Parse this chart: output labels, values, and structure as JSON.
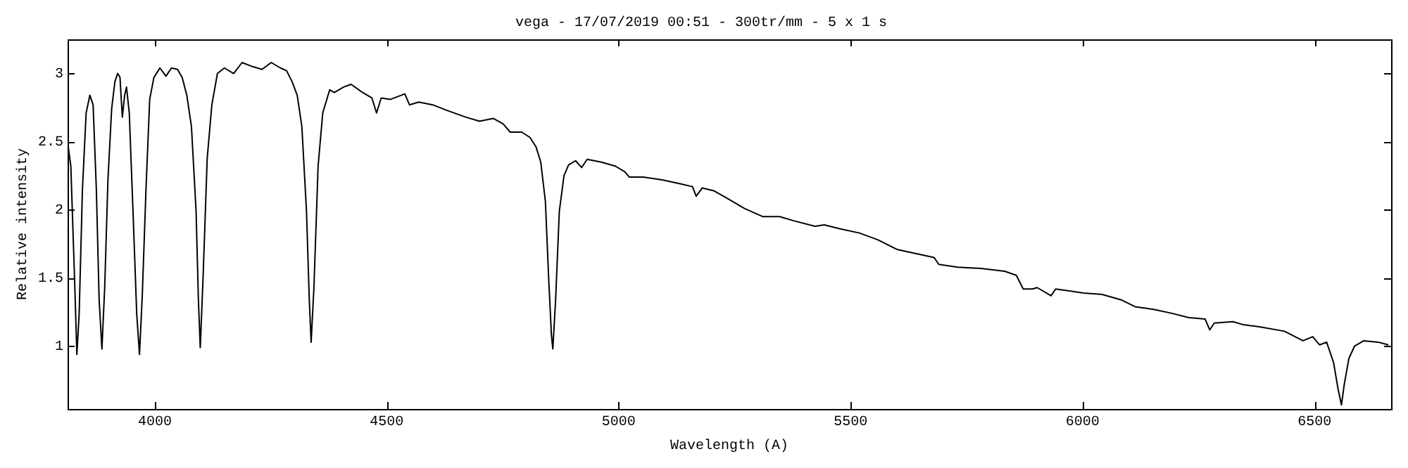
{
  "chart_data": {
    "type": "line",
    "title": "vega - 17/07/2019 00:51 - 300tr/mm - 5 x 1 s",
    "xlabel": "Wavelength (A)",
    "ylabel": "Relative intensity",
    "xlim": [
      3812,
      6665
    ],
    "ylim": [
      0.54,
      3.25
    ],
    "xticks": [
      4000,
      4500,
      5000,
      5500,
      6000,
      6500
    ],
    "yticks": [
      1,
      1.5,
      2,
      2.5,
      3
    ],
    "grid": false,
    "legend": false,
    "marker": "none",
    "line_style": "solid",
    "series": [
      {
        "color": "#000000",
        "x": [
          3812,
          3819,
          3827,
          3832,
          3837,
          3844,
          3852,
          3860,
          3867,
          3874,
          3880,
          3886,
          3892,
          3899,
          3907,
          3914,
          3920,
          3925,
          3930,
          3935,
          3939,
          3945,
          3953,
          3961,
          3967,
          3973,
          3981,
          3989,
          3998,
          4011,
          4024,
          4036,
          4049,
          4059,
          4069,
          4079,
          4089,
          4094,
          4098,
          4104,
          4113,
          4123,
          4135,
          4150,
          4170,
          4188,
          4211,
          4231,
          4251,
          4271,
          4284,
          4296,
          4307,
          4317,
          4327,
          4333,
          4337,
          4343,
          4352,
          4362,
          4377,
          4387,
          4407,
          4423,
          4448,
          4468,
          4478,
          4488,
          4508,
          4539,
          4549,
          4569,
          4599,
          4629,
          4670,
          4700,
          4730,
          4751,
          4766,
          4791,
          4809,
          4822,
          4832,
          4842,
          4849,
          4855,
          4858,
          4864,
          4872,
          4882,
          4892,
          4907,
          4920,
          4932,
          4963,
          4993,
          5013,
          5023,
          5053,
          5094,
          5134,
          5159,
          5167,
          5180,
          5205,
          5231,
          5271,
          5311,
          5347,
          5377,
          5423,
          5443,
          5478,
          5519,
          5559,
          5600,
          5640,
          5680,
          5690,
          5731,
          5781,
          5832,
          5857,
          5872,
          5892,
          5902,
          5932,
          5942,
          6002,
          6042,
          6083,
          6113,
          6153,
          6194,
          6229,
          6264,
          6274,
          6284,
          6324,
          6344,
          6385,
          6435,
          6475,
          6496,
          6511,
          6526,
          6541,
          6551,
          6558,
          6564,
          6574,
          6586,
          6606,
          6637,
          6659
        ],
        "values": [
          2.5,
          2.32,
          1.5,
          0.94,
          1.24,
          2.15,
          2.71,
          2.84,
          2.77,
          2.15,
          1.34,
          0.98,
          1.43,
          2.22,
          2.74,
          2.94,
          3.0,
          2.97,
          2.68,
          2.84,
          2.9,
          2.71,
          1.99,
          1.24,
          0.94,
          1.37,
          2.15,
          2.81,
          2.97,
          3.04,
          2.98,
          3.04,
          3.03,
          2.97,
          2.84,
          2.61,
          1.99,
          1.34,
          0.99,
          1.5,
          2.38,
          2.77,
          3.0,
          3.04,
          3.0,
          3.08,
          3.05,
          3.03,
          3.08,
          3.04,
          3.02,
          2.94,
          2.84,
          2.61,
          1.99,
          1.34,
          1.03,
          1.43,
          2.32,
          2.71,
          2.88,
          2.86,
          2.9,
          2.92,
          2.86,
          2.82,
          2.71,
          2.82,
          2.81,
          2.85,
          2.77,
          2.79,
          2.77,
          2.73,
          2.68,
          2.65,
          2.67,
          2.63,
          2.57,
          2.57,
          2.53,
          2.46,
          2.35,
          2.06,
          1.5,
          1.08,
          0.98,
          1.34,
          1.99,
          2.25,
          2.33,
          2.36,
          2.31,
          2.37,
          2.35,
          2.32,
          2.28,
          2.24,
          2.24,
          2.22,
          2.19,
          2.17,
          2.1,
          2.16,
          2.14,
          2.09,
          2.01,
          1.95,
          1.95,
          1.92,
          1.88,
          1.89,
          1.86,
          1.83,
          1.78,
          1.71,
          1.68,
          1.65,
          1.6,
          1.58,
          1.57,
          1.55,
          1.52,
          1.42,
          1.42,
          1.43,
          1.37,
          1.42,
          1.39,
          1.38,
          1.34,
          1.29,
          1.27,
          1.24,
          1.21,
          1.2,
          1.12,
          1.17,
          1.18,
          1.16,
          1.14,
          1.11,
          1.04,
          1.07,
          1.01,
          1.03,
          0.88,
          0.68,
          0.57,
          0.72,
          0.91,
          1.0,
          1.04,
          1.03,
          1.01
        ]
      }
    ]
  }
}
